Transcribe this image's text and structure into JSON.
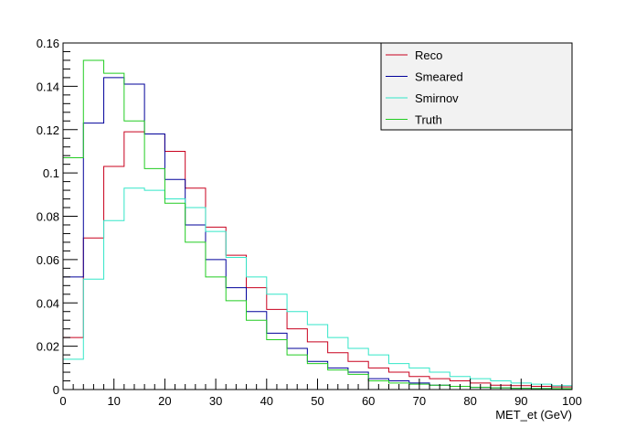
{
  "chart_data": {
    "type": "line",
    "xlabel": "MET_et (GeV)",
    "ylabel": "",
    "title": "",
    "xlim": [
      0,
      100
    ],
    "ylim": [
      0,
      0.16
    ],
    "bin_width": 4,
    "bin_edges": [
      0,
      4,
      8,
      12,
      16,
      20,
      24,
      28,
      32,
      36,
      40,
      44,
      48,
      52,
      56,
      60,
      64,
      68,
      72,
      76,
      80,
      84,
      88,
      92,
      96,
      100
    ],
    "x_ticks": [
      "0",
      "10",
      "20",
      "30",
      "40",
      "50",
      "60",
      "70",
      "80",
      "90",
      "100"
    ],
    "y_ticks": [
      "0",
      "0.02",
      "0.04",
      "0.06",
      "0.08",
      "0.1",
      "0.12",
      "0.14",
      "0.16"
    ],
    "grid": false,
    "legend_placement": "top-right",
    "series": [
      {
        "name": "Reco",
        "color": "#c8001e",
        "values": [
          0.024,
          0.07,
          0.103,
          0.119,
          0.118,
          0.11,
          0.093,
          0.075,
          0.062,
          0.047,
          0.037,
          0.028,
          0.022,
          0.017,
          0.013,
          0.01,
          0.008,
          0.006,
          0.005,
          0.004,
          0.003,
          0.002,
          0.0018,
          0.0015,
          0.0012
        ]
      },
      {
        "name": "Smeared",
        "color": "#00009a",
        "values": [
          0.052,
          0.123,
          0.144,
          0.141,
          0.118,
          0.097,
          0.076,
          0.06,
          0.047,
          0.036,
          0.026,
          0.019,
          0.013,
          0.01,
          0.008,
          0.005,
          0.004,
          0.003,
          0.002,
          0.0015,
          0.001,
          0.0008,
          0.0006,
          0.0005,
          0.0004
        ]
      },
      {
        "name": "Smirnov",
        "color": "#33e6c8",
        "values": [
          0.014,
          0.051,
          0.078,
          0.093,
          0.092,
          0.088,
          0.084,
          0.073,
          0.061,
          0.052,
          0.044,
          0.036,
          0.03,
          0.024,
          0.019,
          0.016,
          0.012,
          0.01,
          0.008,
          0.006,
          0.005,
          0.004,
          0.003,
          0.0025,
          0.0018
        ]
      },
      {
        "name": "Truth",
        "color": "#22cc22",
        "values": [
          0.107,
          0.152,
          0.146,
          0.124,
          0.102,
          0.086,
          0.068,
          0.052,
          0.041,
          0.032,
          0.023,
          0.016,
          0.012,
          0.009,
          0.007,
          0.004,
          0.003,
          0.0025,
          0.002,
          0.0015,
          0.001,
          0.0008,
          0.0006,
          0.0005,
          0.0004
        ]
      }
    ]
  }
}
